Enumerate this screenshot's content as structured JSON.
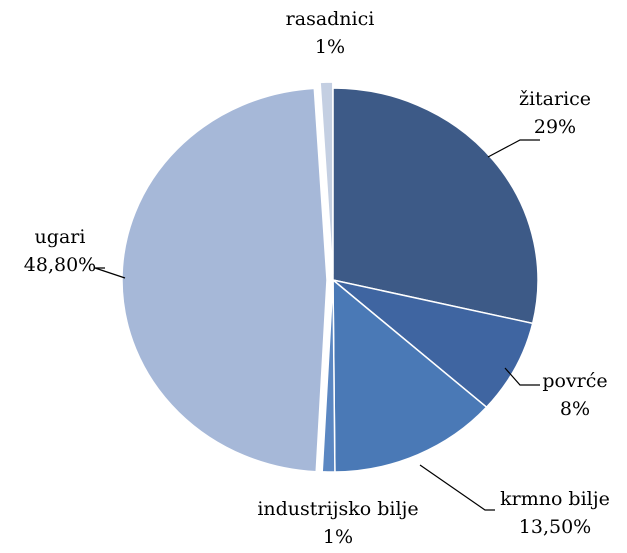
{
  "chart_data": {
    "type": "pie",
    "categories": [
      "žitarice",
      "povrće",
      "krmno bilje",
      "industrijsko bilje",
      "ugari",
      "rasadnici"
    ],
    "values": [
      29,
      8,
      13.5,
      1,
      48.8,
      1
    ],
    "value_labels": [
      "29%",
      "8%",
      "13,50%",
      "1%",
      "48,80%",
      "1%"
    ],
    "colors": [
      "#3d5a87",
      "#3f65a1",
      "#4a79b6",
      "#5b87c2",
      "#a6b8d8",
      "#c4cfe2"
    ]
  }
}
